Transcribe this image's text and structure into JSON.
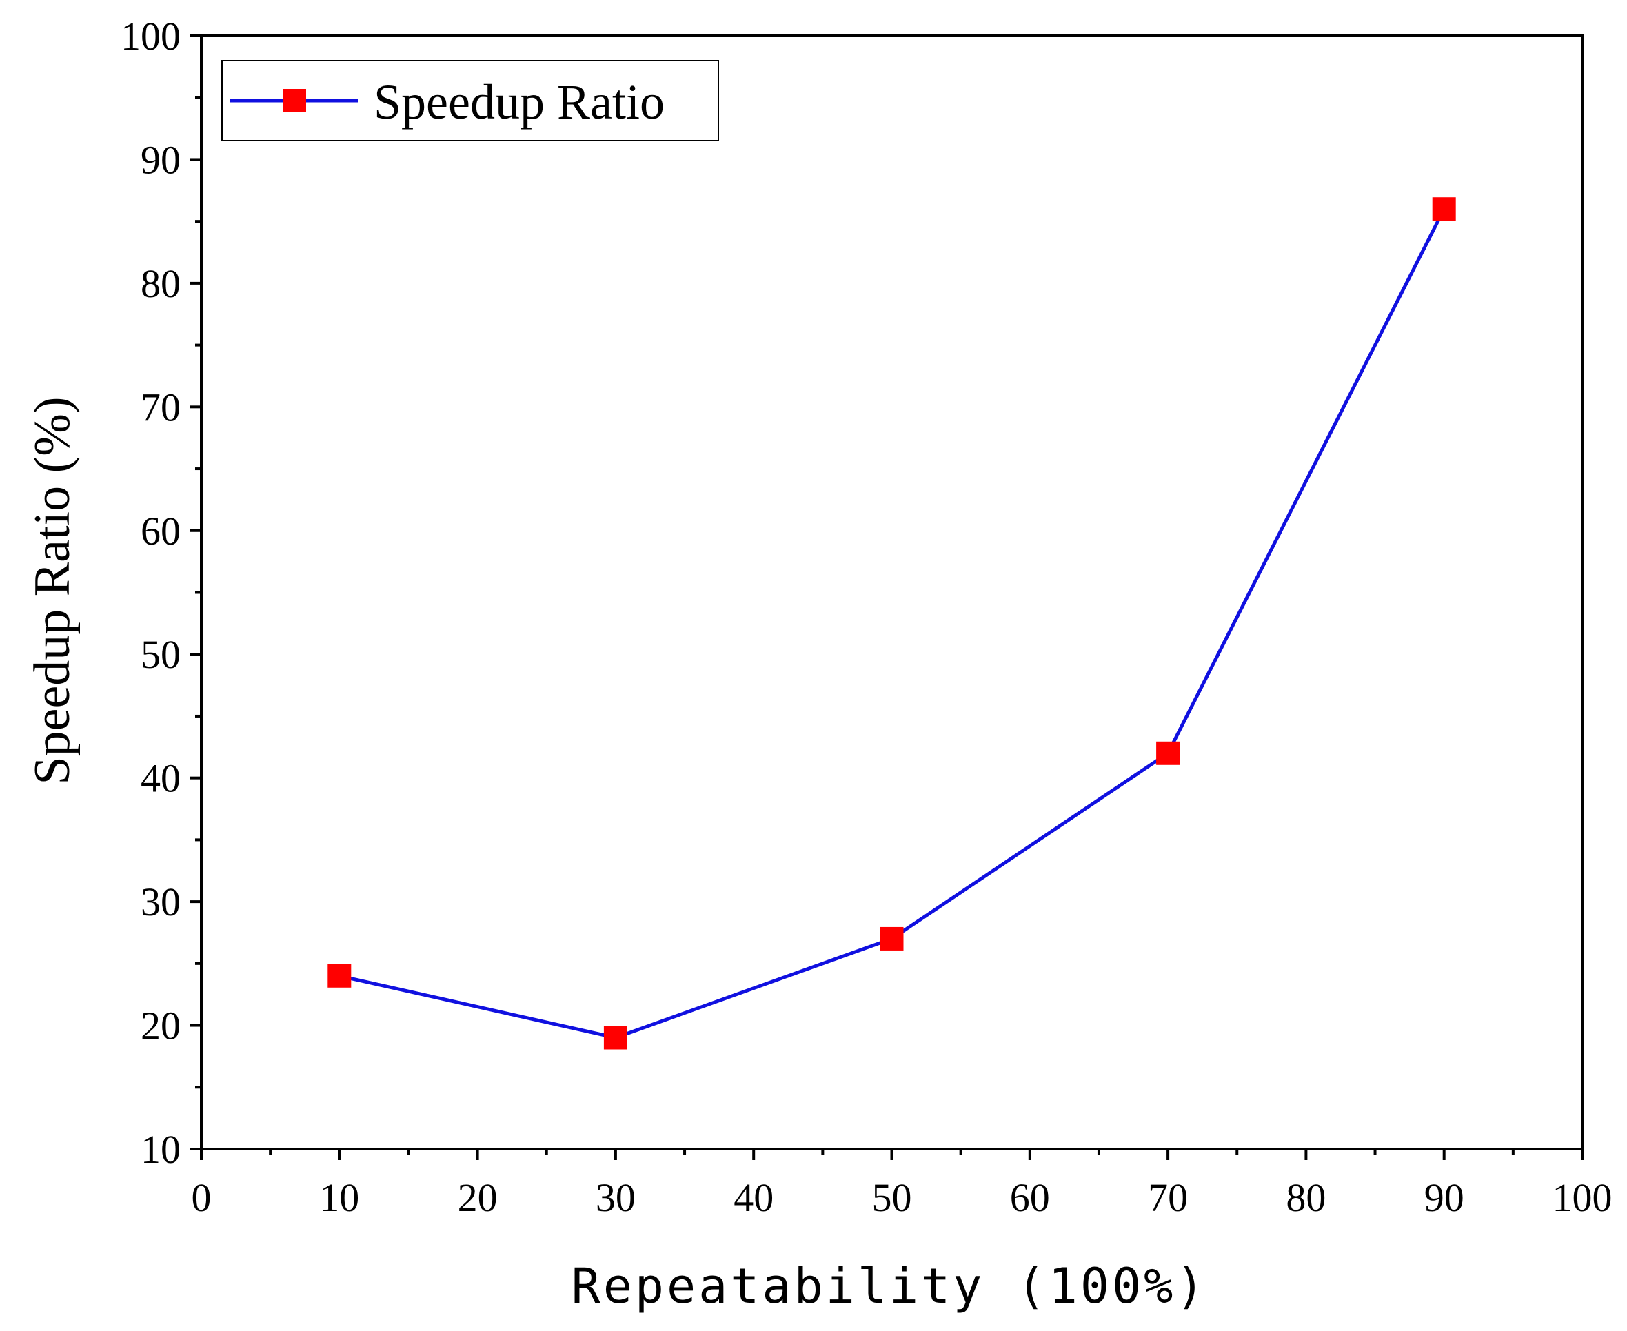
{
  "chart_data": {
    "type": "line",
    "title": "",
    "xlabel": "Repeatability (100%)",
    "ylabel": "Speedup Ratio (%)",
    "xlim": [
      0,
      100
    ],
    "ylim": [
      10,
      100
    ],
    "xticks": [
      0,
      10,
      20,
      30,
      40,
      50,
      60,
      70,
      80,
      90,
      100
    ],
    "yticks": [
      10,
      20,
      30,
      40,
      50,
      60,
      70,
      80,
      90,
      100
    ],
    "xtick_labels": [
      "0",
      "10",
      "20",
      "30",
      "40",
      "50",
      "60",
      "70",
      "80",
      "90",
      "100"
    ],
    "ytick_labels": [
      "10",
      "20",
      "30",
      "40",
      "50",
      "60",
      "70",
      "80",
      "90",
      "100"
    ],
    "grid": false,
    "legend_position": "top-left",
    "series": [
      {
        "name": "Speedup Ratio",
        "x": [
          10,
          30,
          50,
          70,
          90
        ],
        "values": [
          24,
          19,
          27,
          42,
          86
        ],
        "line_color": "#1010e0",
        "marker": "square",
        "marker_color": "#ff0000"
      }
    ]
  }
}
